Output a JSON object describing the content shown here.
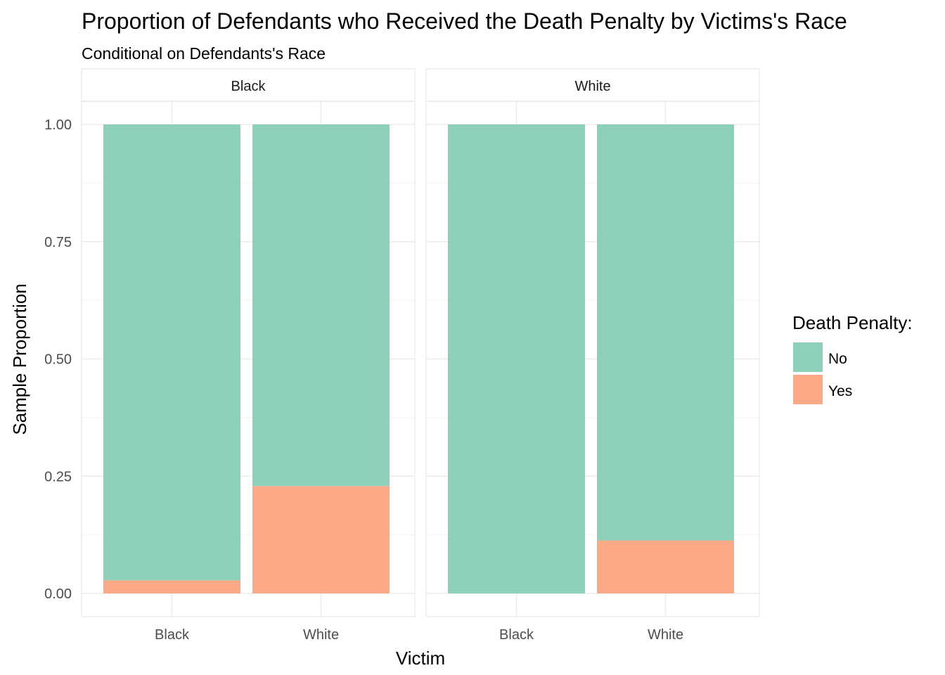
{
  "chart_data": {
    "type": "bar",
    "stacked": true,
    "title": "Proportion of Defendants who Received the Death Penalty by Victims's Race",
    "subtitle": "Conditional on Defendants's Race",
    "xlabel": "Victim",
    "ylabel": "Sample Proportion",
    "ylim": [
      0,
      1
    ],
    "yticks": [
      "0.00",
      "0.25",
      "0.50",
      "0.75",
      "1.00"
    ],
    "yminor": [
      0.125,
      0.375,
      0.625,
      0.875
    ],
    "categories": [
      "Black",
      "White"
    ],
    "legend": {
      "title": "Death Penalty:",
      "position": "right",
      "entries": [
        {
          "name": "No",
          "color": "#8dd1bb"
        },
        {
          "name": "Yes",
          "color": "#fca988"
        }
      ]
    },
    "facets": [
      {
        "label": "Black",
        "series": [
          {
            "name": "Yes",
            "values": [
              0.028,
              0.229
            ]
          },
          {
            "name": "No",
            "values": [
              0.972,
              0.771
            ]
          }
        ]
      },
      {
        "label": "White",
        "series": [
          {
            "name": "Yes",
            "values": [
              0.0,
              0.113
            ]
          },
          {
            "name": "No",
            "values": [
              1.0,
              0.887
            ]
          }
        ]
      }
    ],
    "grid": true
  }
}
